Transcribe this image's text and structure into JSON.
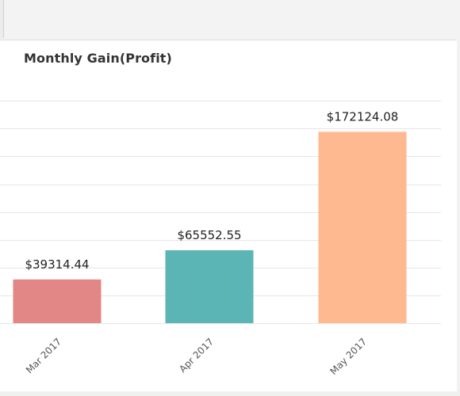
{
  "panel": {
    "title": "Monthly Gain(Profit)"
  },
  "chart_data": {
    "type": "bar",
    "title": "Monthly Gain(Profit)",
    "xlabel": "",
    "ylabel": "",
    "categories": [
      "Mar 2017",
      "Apr 2017",
      "May 2017"
    ],
    "values": [
      39314.44,
      65552.55,
      172124.08
    ],
    "value_labels": [
      "$39314.44",
      "$65552.55",
      "$172124.08"
    ],
    "colors": [
      "#e38686",
      "#5cb5b5",
      "#ffb990"
    ],
    "ylim": [
      0,
      215000
    ],
    "grid": true,
    "legend": "none"
  }
}
